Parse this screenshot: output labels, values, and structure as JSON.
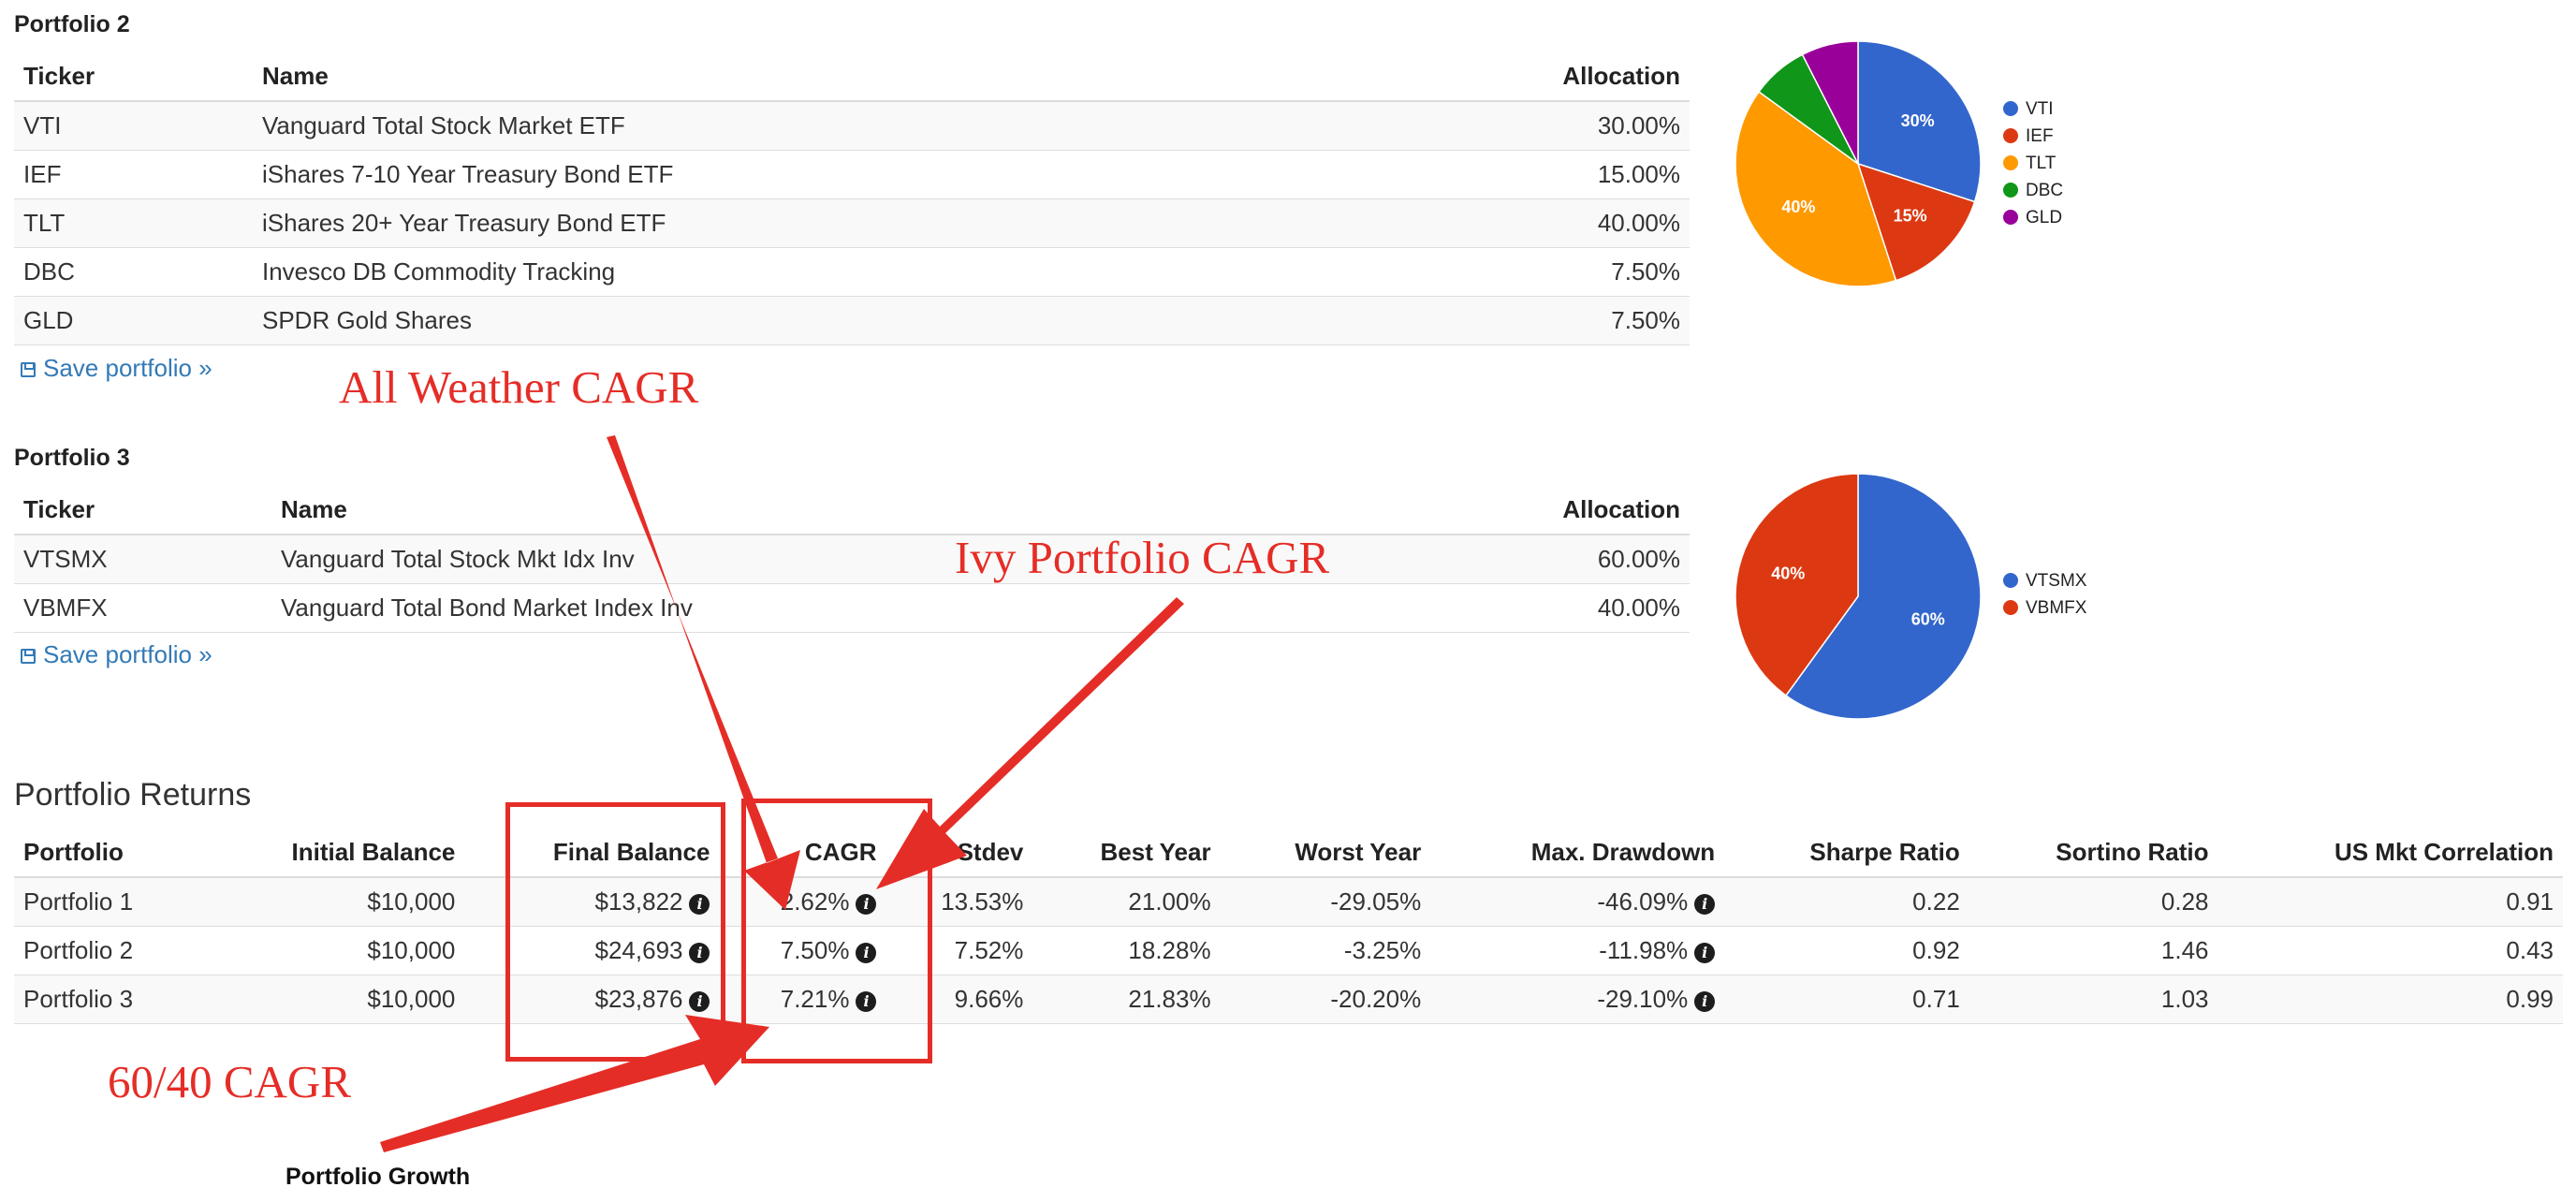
{
  "portfolio2": {
    "title": "Portfolio 2",
    "headers": {
      "ticker": "Ticker",
      "name": "Name",
      "allocation": "Allocation"
    },
    "rows": [
      {
        "ticker": "VTI",
        "name": "Vanguard Total Stock Market ETF",
        "allocation": "30.00%"
      },
      {
        "ticker": "IEF",
        "name": "iShares 7-10 Year Treasury Bond ETF",
        "allocation": "15.00%"
      },
      {
        "ticker": "TLT",
        "name": "iShares 20+ Year Treasury Bond ETF",
        "allocation": "40.00%"
      },
      {
        "ticker": "DBC",
        "name": "Invesco DB Commodity Tracking",
        "allocation": "7.50%"
      },
      {
        "ticker": "GLD",
        "name": "SPDR Gold Shares",
        "allocation": "7.50%"
      }
    ],
    "save_label": "Save portfolio »",
    "legend": [
      "VTI",
      "IEF",
      "TLT",
      "DBC",
      "GLD"
    ],
    "slice_labels": [
      "30%",
      "15%",
      "40%",
      "",
      ""
    ]
  },
  "portfolio3": {
    "title": "Portfolio 3",
    "headers": {
      "ticker": "Ticker",
      "name": "Name",
      "allocation": "Allocation"
    },
    "rows": [
      {
        "ticker": "VTSMX",
        "name": "Vanguard Total Stock Mkt Idx Inv",
        "allocation": "60.00%"
      },
      {
        "ticker": "VBMFX",
        "name": "Vanguard Total Bond Market Index Inv",
        "allocation": "40.00%"
      }
    ],
    "save_label": "Save portfolio »",
    "legend": [
      "VTSMX",
      "VBMFX"
    ],
    "slice_labels": [
      "60%",
      "40%"
    ]
  },
  "returns": {
    "title": "Portfolio Returns",
    "headers": [
      "Portfolio",
      "Initial Balance",
      "Final Balance",
      "CAGR",
      "Stdev",
      "Best Year",
      "Worst Year",
      "Max. Drawdown",
      "Sharpe Ratio",
      "Sortino Ratio",
      "US Mkt Correlation"
    ],
    "rows": [
      [
        "Portfolio 1",
        "$10,000",
        "$13,822",
        "2.62%",
        "13.53%",
        "21.00%",
        "-29.05%",
        "-46.09%",
        "0.22",
        "0.28",
        "0.91"
      ],
      [
        "Portfolio 2",
        "$10,000",
        "$24,693",
        "7.50%",
        "7.52%",
        "18.28%",
        "-3.25%",
        "-11.98%",
        "0.92",
        "1.46",
        "0.43"
      ],
      [
        "Portfolio 3",
        "$10,000",
        "$23,876",
        "7.21%",
        "9.66%",
        "21.83%",
        "-20.20%",
        "-29.10%",
        "0.71",
        "1.03",
        "0.99"
      ]
    ]
  },
  "growth_title": "Portfolio Growth",
  "annotations": {
    "all_weather": "All Weather CAGR",
    "ivy": "Ivy Portfolio CAGR",
    "sixty_forty": "60/40 CAGR"
  },
  "colors": {
    "blue": "#3366cc",
    "red": "#dc3912",
    "orange": "#ff9900",
    "green": "#109618",
    "purple": "#990099",
    "annotation": "#e52d27",
    "link": "#337ab7"
  },
  "chart_data": [
    {
      "type": "pie",
      "categories": [
        "VTI",
        "IEF",
        "TLT",
        "DBC",
        "GLD"
      ],
      "values": [
        30,
        15,
        40,
        7.5,
        7.5
      ],
      "legend": "right"
    },
    {
      "type": "pie",
      "categories": [
        "VTSMX",
        "VBMFX"
      ],
      "values": [
        60,
        40
      ],
      "legend": "right"
    }
  ]
}
